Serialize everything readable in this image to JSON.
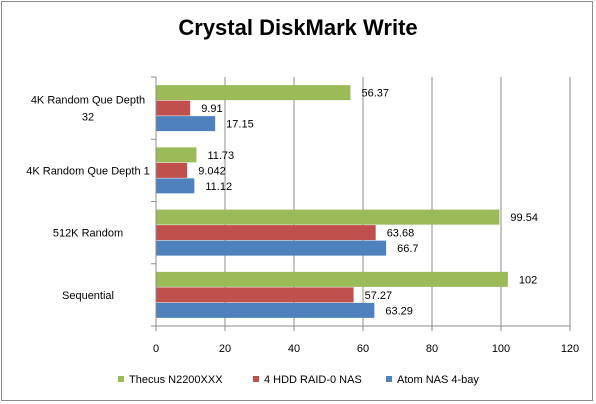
{
  "chart_data": {
    "type": "bar",
    "orientation": "horizontal",
    "title": "Crystal DiskMark Write",
    "categories": [
      "4K Random Que Depth 32",
      "4K Random Que Depth 1",
      "512K Random",
      "Sequential"
    ],
    "category_label_lines": [
      [
        "4K Random Que Depth",
        "32"
      ],
      [
        "4K Random Que Depth 1"
      ],
      [
        "512K Random"
      ],
      [
        "Sequential"
      ]
    ],
    "series": [
      {
        "name": "Thecus N2200XXX",
        "color": "#9bbb59",
        "values": [
          56.37,
          11.73,
          99.54,
          102
        ],
        "labels": [
          "56.37",
          "11.73",
          "99.54",
          "102"
        ]
      },
      {
        "name": "4 HDD RAID-0 NAS",
        "color": "#c0504d",
        "values": [
          9.91,
          9.042,
          63.68,
          57.27
        ],
        "labels": [
          "9.91",
          "9.042",
          "63.68",
          "57.27"
        ]
      },
      {
        "name": "Atom NAS 4-bay",
        "color": "#4f81bd",
        "values": [
          17.15,
          11.12,
          66.7,
          63.29
        ],
        "labels": [
          "17.15",
          "11.12",
          "66.7",
          "63.29"
        ]
      }
    ],
    "xlim": [
      0,
      120
    ],
    "xticks": [
      0,
      20,
      40,
      60,
      80,
      100,
      120
    ],
    "grid": true,
    "legend_position": "bottom"
  }
}
